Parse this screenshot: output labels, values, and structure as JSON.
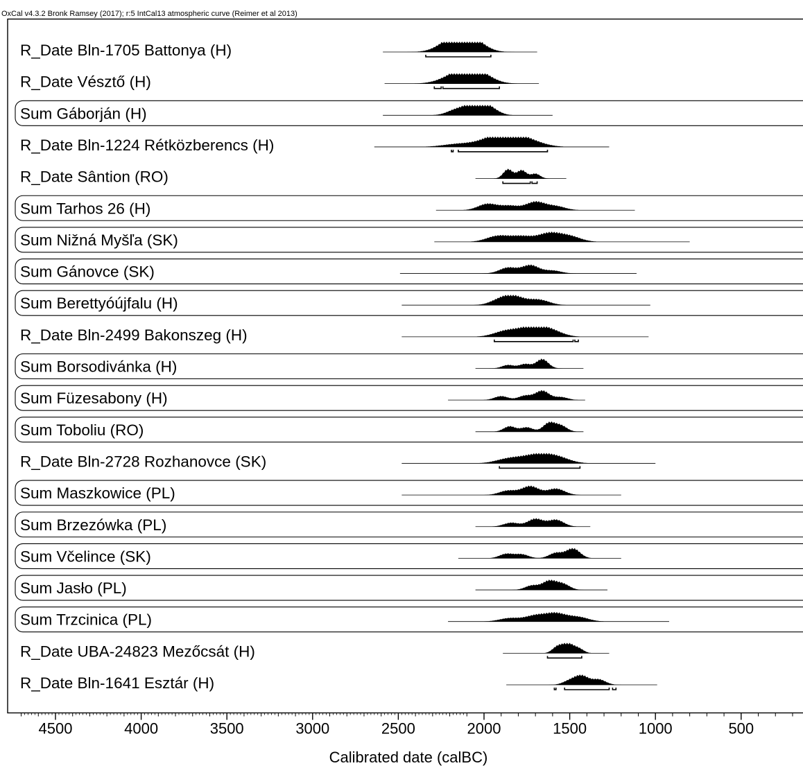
{
  "header_text": "OxCal v4.3.2 Bronk Ramsey (2017); r:5 IntCal13 atmospheric curve (Reimer et al 2013)",
  "chart_data": {
    "type": "area",
    "chart_kind": "OxCal multiplot of calibrated radiocarbon date distributions",
    "xlabel": "Calibrated date (calBC)",
    "x_reversed": true,
    "xlim": [
      4700,
      170
    ],
    "x_ticks": [
      4500,
      4000,
      3500,
      3000,
      2500,
      2000,
      1500,
      1000,
      500
    ],
    "x_minor_step": 100,
    "grid": false,
    "legend": "none",
    "rows": [
      {
        "label": "R_Date Bln-1705 Battonya (H)",
        "boxed": false,
        "range": [
          2590,
          1690
        ],
        "peaks": [
          [
            2230,
            0.45
          ],
          [
            2160,
            0.9
          ],
          [
            2110,
            0.75
          ],
          [
            2050,
            0.7
          ]
        ],
        "spread": 140,
        "hpd": [
          [
            2340,
            1960
          ]
        ]
      },
      {
        "label": "R_Date Vésztő (H)",
        "boxed": false,
        "range": [
          2580,
          1680
        ],
        "peaks": [
          [
            2230,
            0.3
          ],
          [
            2140,
            0.75
          ],
          [
            2080,
            0.9
          ],
          [
            2000,
            0.6
          ]
        ],
        "spread": 140,
        "hpd": [
          [
            2290,
            2250
          ],
          [
            2240,
            1910
          ]
        ]
      },
      {
        "label": "Sum Gáborján (H)",
        "boxed": true,
        "range": [
          2590,
          1600
        ],
        "peaks": [
          [
            2160,
            0.55
          ],
          [
            2060,
            0.95
          ],
          [
            1980,
            0.85
          ]
        ],
        "spread": 110,
        "hpd": []
      },
      {
        "label": "R_Date Bln-1224 Rétközberencs (H)",
        "boxed": false,
        "range": [
          2640,
          1270
        ],
        "peaks": [
          [
            2150,
            0.3
          ],
          [
            1950,
            0.65
          ],
          [
            1860,
            0.8
          ],
          [
            1750,
            0.6
          ]
        ],
        "spread": 180,
        "hpd": [
          [
            2190,
            2180
          ],
          [
            2150,
            1630
          ]
        ]
      },
      {
        "label": "R_Date Sântion (RO)",
        "boxed": false,
        "range": [
          2050,
          1520
        ],
        "peaks": [
          [
            1860,
            0.95
          ],
          [
            1780,
            0.85
          ],
          [
            1700,
            0.5
          ]
        ],
        "spread": 55,
        "hpd": [
          [
            1890,
            1730
          ],
          [
            1720,
            1690
          ]
        ]
      },
      {
        "label": "Sum Tarhos 26 (H)",
        "boxed": true,
        "range": [
          2280,
          1120
        ],
        "peaks": [
          [
            1980,
            0.65
          ],
          [
            1850,
            0.45
          ],
          [
            1700,
            0.85
          ],
          [
            1580,
            0.4
          ]
        ],
        "spread": 110,
        "hpd": []
      },
      {
        "label": "Sum Nižná Myšľa (SK)",
        "boxed": true,
        "range": [
          2290,
          800
        ],
        "peaks": [
          [
            1920,
            0.6
          ],
          [
            1780,
            0.55
          ],
          [
            1620,
            0.85
          ],
          [
            1500,
            0.55
          ]
        ],
        "spread": 130,
        "hpd": []
      },
      {
        "label": "Sum Gánovce (SK)",
        "boxed": true,
        "range": [
          2490,
          1110
        ],
        "peaks": [
          [
            1860,
            0.6
          ],
          [
            1730,
            0.85
          ],
          [
            1600,
            0.3
          ]
        ],
        "spread": 100,
        "hpd": []
      },
      {
        "label": "Sum Berettyóújfalu (H)",
        "boxed": true,
        "range": [
          2480,
          1030
        ],
        "peaks": [
          [
            1900,
            0.55
          ],
          [
            1820,
            0.75
          ],
          [
            1680,
            0.55
          ]
        ],
        "spread": 120,
        "hpd": []
      },
      {
        "label": "R_Date Bln-2499 Bakonszeg (H)",
        "boxed": false,
        "range": [
          2480,
          1040
        ],
        "peaks": [
          [
            1870,
            0.6
          ],
          [
            1730,
            0.85
          ],
          [
            1620,
            0.7
          ]
        ],
        "spread": 140,
        "hpd": [
          [
            1940,
            1480
          ],
          [
            1470,
            1450
          ]
        ]
      },
      {
        "label": "Sum Borsodivánka (H)",
        "boxed": true,
        "range": [
          2050,
          1420
        ],
        "peaks": [
          [
            1860,
            0.35
          ],
          [
            1760,
            0.45
          ],
          [
            1660,
            0.95
          ]
        ],
        "spread": 70,
        "hpd": []
      },
      {
        "label": "Sum Füzesabony (H)",
        "boxed": true,
        "range": [
          2210,
          1410
        ],
        "peaks": [
          [
            1900,
            0.4
          ],
          [
            1760,
            0.45
          ],
          [
            1660,
            0.95
          ],
          [
            1550,
            0.3
          ]
        ],
        "spread": 80,
        "hpd": []
      },
      {
        "label": "Sum Toboliu (RO)",
        "boxed": true,
        "range": [
          2050,
          1420
        ],
        "peaks": [
          [
            1850,
            0.55
          ],
          [
            1750,
            0.45
          ],
          [
            1620,
            0.9
          ],
          [
            1550,
            0.6
          ]
        ],
        "spread": 70,
        "hpd": []
      },
      {
        "label": "R_Date Bln-2728 Rozhanovce (SK)",
        "boxed": false,
        "range": [
          2480,
          1000
        ],
        "peaks": [
          [
            1850,
            0.5
          ],
          [
            1700,
            0.75
          ],
          [
            1580,
            0.65
          ]
        ],
        "spread": 150,
        "hpd": [
          [
            1910,
            1440
          ]
        ]
      },
      {
        "label": "Sum Maszkowice (PL)",
        "boxed": true,
        "range": [
          2480,
          1200
        ],
        "peaks": [
          [
            1860,
            0.45
          ],
          [
            1730,
            0.9
          ],
          [
            1580,
            0.65
          ]
        ],
        "spread": 100,
        "hpd": []
      },
      {
        "label": "Sum Brzezówka (PL)",
        "boxed": true,
        "range": [
          2050,
          1380
        ],
        "peaks": [
          [
            1840,
            0.4
          ],
          [
            1700,
            0.8
          ],
          [
            1580,
            0.7
          ]
        ],
        "spread": 90,
        "hpd": []
      },
      {
        "label": "Sum Včelince (SK)",
        "boxed": true,
        "range": [
          2150,
          1200
        ],
        "peaks": [
          [
            1870,
            0.45
          ],
          [
            1780,
            0.4
          ],
          [
            1580,
            0.55
          ],
          [
            1480,
            1.0
          ]
        ],
        "spread": 80,
        "hpd": []
      },
      {
        "label": "Sum Jasło (PL)",
        "boxed": true,
        "range": [
          2050,
          1280
        ],
        "peaks": [
          [
            1720,
            0.45
          ],
          [
            1620,
            0.9
          ],
          [
            1540,
            0.6
          ]
        ],
        "spread": 80,
        "hpd": []
      },
      {
        "label": "Sum Trzcinica (PL)",
        "boxed": true,
        "range": [
          2210,
          920
        ],
        "peaks": [
          [
            1850,
            0.35
          ],
          [
            1700,
            0.6
          ],
          [
            1580,
            0.8
          ],
          [
            1450,
            0.45
          ]
        ],
        "spread": 120,
        "hpd": []
      },
      {
        "label": "R_Date UBA-24823 Mezőcsát (H)",
        "boxed": false,
        "range": [
          1890,
          1270
        ],
        "peaks": [
          [
            1570,
            0.7
          ],
          [
            1510,
            0.9
          ],
          [
            1450,
            0.5
          ]
        ],
        "spread": 60,
        "hpd": [
          [
            1630,
            1430
          ]
        ]
      },
      {
        "label": "R_Date Bln-1641 Esztár (H)",
        "boxed": false,
        "range": [
          1870,
          990
        ],
        "peaks": [
          [
            1500,
            0.4
          ],
          [
            1430,
            0.9
          ],
          [
            1330,
            0.55
          ]
        ],
        "spread": 80,
        "hpd": [
          [
            1590,
            1580
          ],
          [
            1530,
            1270
          ],
          [
            1250,
            1230
          ]
        ]
      }
    ]
  }
}
